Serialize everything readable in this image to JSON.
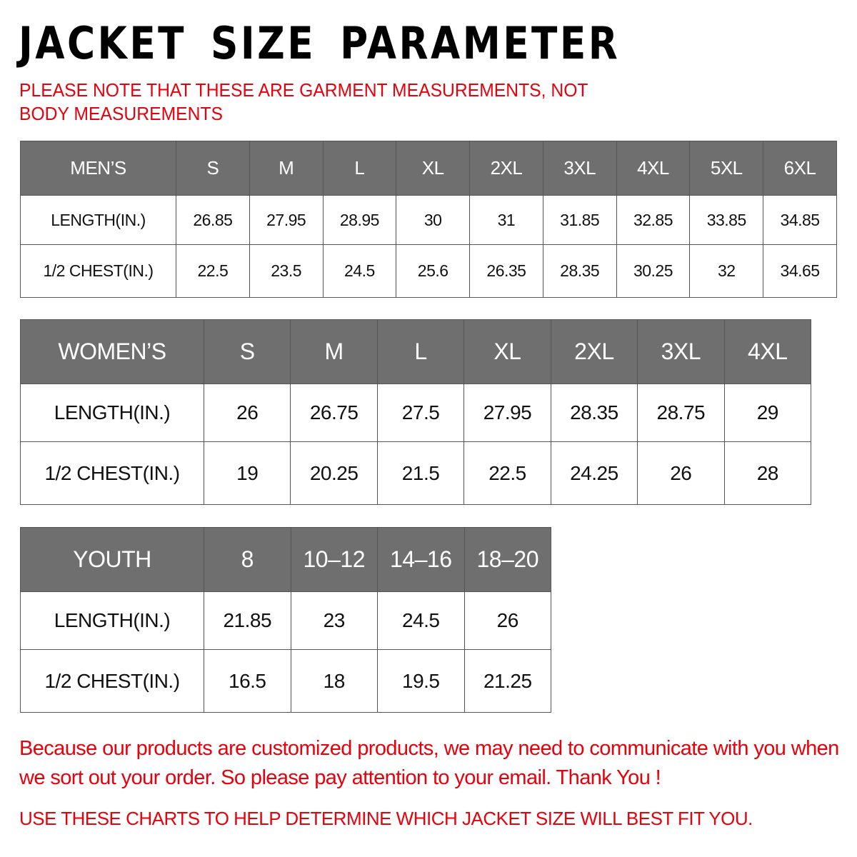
{
  "title": "JACKET  SIZE  PARAMETER",
  "note": "PLEASE NOTE THAT THESE ARE GARMENT MEASUREMENTS, NOT BODY MEASUREMENTS",
  "colors": {
    "header_bg": "#6f6f6f",
    "header_text": "#ffffff",
    "note_red": "#e8000b"
  },
  "tables": {
    "men": {
      "headers": [
        "MEN’S",
        "S",
        "M",
        "L",
        "XL",
        "2XL",
        "3XL",
        "4XL",
        "5XL",
        "6XL"
      ],
      "rows": [
        [
          "LENGTH(IN.)",
          "26.85",
          "27.95",
          "28.95",
          "30",
          "31",
          "31.85",
          "32.85",
          "33.85",
          "34.85"
        ],
        [
          "1/2 CHEST(IN.)",
          "22.5",
          "23.5",
          "24.5",
          "25.6",
          "26.35",
          "28.35",
          "30.25",
          "32",
          "34.65"
        ]
      ]
    },
    "women": {
      "headers": [
        "WOMEN’S",
        "S",
        "M",
        "L",
        "XL",
        "2XL",
        "3XL",
        "4XL"
      ],
      "rows": [
        [
          "LENGTH(IN.)",
          "26",
          "26.75",
          "27.5",
          "27.95",
          "28.35",
          "28.75",
          "29"
        ],
        [
          "1/2 CHEST(IN.)",
          "19",
          "20.25",
          "21.5",
          "22.5",
          "24.25",
          "26",
          "28"
        ]
      ]
    },
    "youth": {
      "headers": [
        "YOUTH",
        "8",
        "10–12",
        "14–16",
        "18–20"
      ],
      "rows": [
        [
          "LENGTH(IN.)",
          "21.85",
          "23",
          "24.5",
          "26"
        ],
        [
          "1/2 CHEST(IN.)",
          "16.5",
          "18",
          "19.5",
          "21.25"
        ]
      ]
    }
  },
  "footer": {
    "message": "Because our products are customized products, we may need to communicate with you when we sort out your order. So please pay attention to your email. Thank You !",
    "advice": "USE THESE CHARTS TO HELP DETERMINE WHICH JACKET SIZE WILL BEST FIT YOU."
  }
}
